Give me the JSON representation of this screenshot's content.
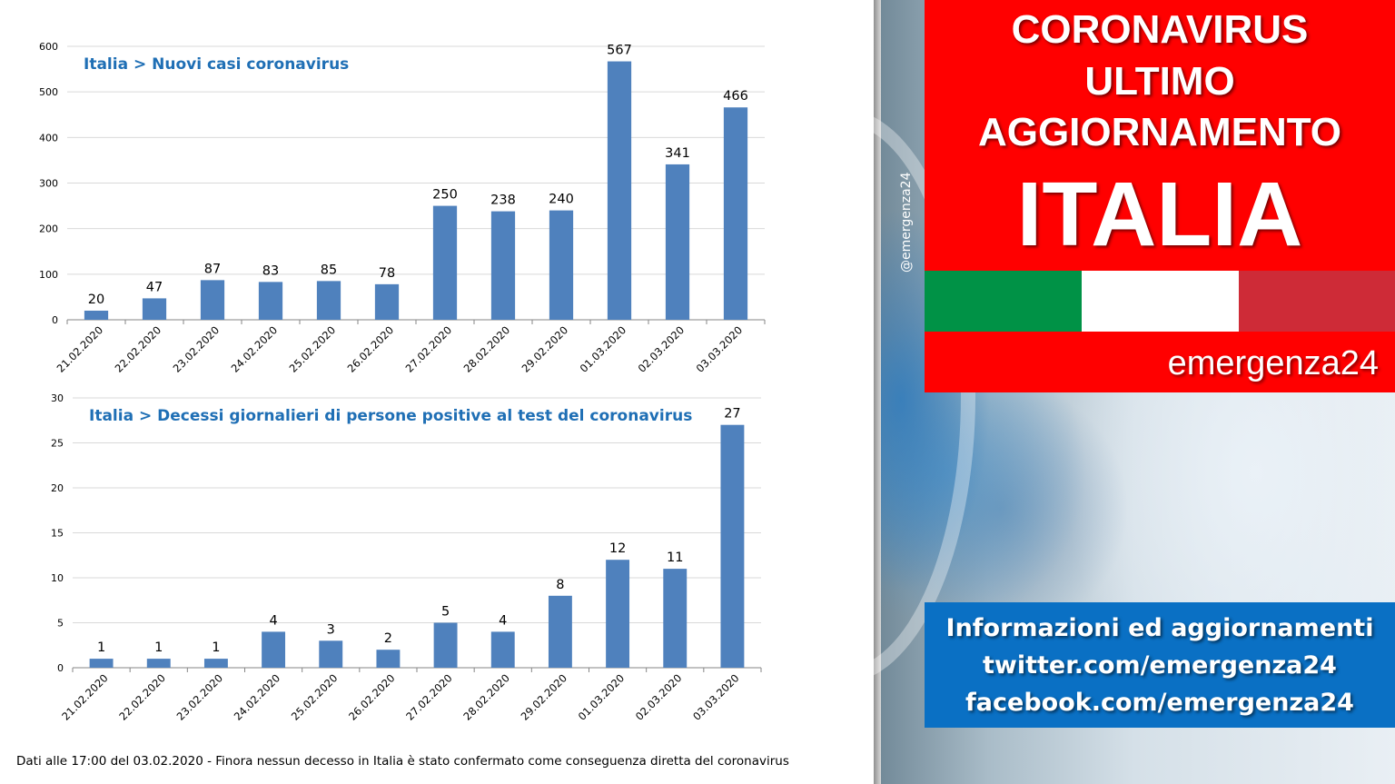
{
  "chart_data": [
    {
      "type": "bar",
      "title": "Italia > Nuovi casi coronavirus",
      "categories": [
        "21.02.2020",
        "22.02.2020",
        "23.02.2020",
        "24.02.2020",
        "25.02.2020",
        "26.02.2020",
        "27.02.2020",
        "28.02.2020",
        "29.02.2020",
        "01.03.2020",
        "02.03.2020",
        "03.03.2020"
      ],
      "values": [
        20,
        47,
        87,
        83,
        85,
        78,
        250,
        238,
        240,
        567,
        341,
        466
      ],
      "ylim": [
        0,
        600
      ],
      "yticks": [
        0,
        100,
        200,
        300,
        400,
        500,
        600
      ],
      "bar_color": "#4f81bd",
      "grid": true,
      "legend": "none"
    },
    {
      "type": "bar",
      "title": "Italia > Decessi giornalieri di persone positive al test del coronavirus",
      "categories": [
        "21.02.2020",
        "22.02.2020",
        "23.02.2020",
        "24.02.2020",
        "25.02.2020",
        "26.02.2020",
        "27.02.2020",
        "28.02.2020",
        "29.02.2020",
        "01.03.2020",
        "02.03.2020",
        "03.03.2020"
      ],
      "values": [
        1,
        1,
        1,
        4,
        3,
        2,
        5,
        4,
        8,
        12,
        11,
        27
      ],
      "ylim": [
        0,
        30
      ],
      "yticks": [
        0,
        5,
        10,
        15,
        20,
        25,
        30
      ],
      "bar_color": "#4f81bd",
      "grid": true,
      "legend": "none"
    }
  ],
  "footnote": "Dati alle 17:00 del 03.02.2020 - Finora nessun decesso in Italia è stato confermato come conseguenza diretta del coronavirus",
  "side_panel": {
    "handle": "@emergenza24",
    "title_lines": [
      "CORONAVIRUS",
      "ULTIMO",
      "AGGIORNAMENTO"
    ],
    "country": "ITALIA",
    "flag_colors": [
      "#009246",
      "#ffffff",
      "#ce2b37"
    ],
    "accent_red": "#ff0000",
    "brand": "emergenza24",
    "info_lines": [
      "Informazioni ed aggiornamenti",
      "twitter.com/emergenza24",
      "facebook.com/emergenza24"
    ],
    "info_color": "#0a70c4"
  }
}
